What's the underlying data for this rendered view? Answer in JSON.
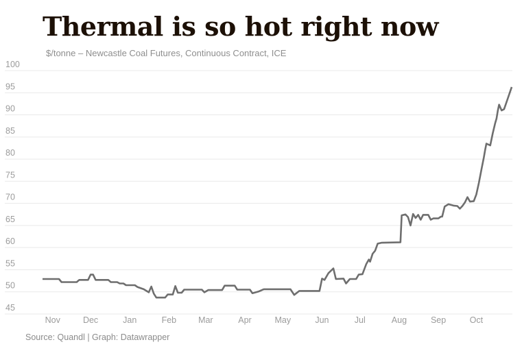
{
  "header": {
    "title": "Thermal is so hot right now",
    "subtitle": "$/tonne – Newcastle Coal Futures, Continuous Contract, ICE"
  },
  "footer": {
    "source": "Source: Quandl | Graph: Datawrapper"
  },
  "colors": {
    "background": "#ffffff",
    "title": "#1c1006",
    "subtitle": "#8e8e8e",
    "source": "#8b8b8b",
    "line": "#6e6e6e",
    "grid": "#e9e9e9",
    "axis_label": "#9b9b9b"
  },
  "chart_data": {
    "type": "line",
    "title": "Thermal is so hot right now",
    "subtitle": "$/tonne – Newcastle Coal Futures, Continuous Contract, ICE",
    "xlabel": "",
    "ylabel": "$/tonne",
    "ylim": [
      45,
      100
    ],
    "yticks": [
      45,
      50,
      55,
      60,
      65,
      70,
      75,
      80,
      85,
      90,
      95,
      100
    ],
    "grid": "horizontal",
    "legend": "none",
    "x_axis": {
      "type": "time",
      "domain_days": [
        0,
        371
      ],
      "month_ticks": [
        {
          "label": "Nov",
          "day": 8
        },
        {
          "label": "Dec",
          "day": 38
        },
        {
          "label": "Jan",
          "day": 69
        },
        {
          "label": "Feb",
          "day": 100
        },
        {
          "label": "Mar",
          "day": 129
        },
        {
          "label": "Apr",
          "day": 160
        },
        {
          "label": "May",
          "day": 190
        },
        {
          "label": "Jun",
          "day": 221
        },
        {
          "label": "Jul",
          "day": 251
        },
        {
          "label": "Aug",
          "day": 282
        },
        {
          "label": "Sep",
          "day": 313
        },
        {
          "label": "Oct",
          "day": 343
        }
      ]
    },
    "series": [
      {
        "name": "Newcastle Coal Futures, Continuous Contract, ICE ($/tonne)",
        "points_day_value": [
          [
            0,
            52.9
          ],
          [
            13,
            52.9
          ],
          [
            15,
            52.2
          ],
          [
            27,
            52.2
          ],
          [
            29,
            52.7
          ],
          [
            36,
            52.7
          ],
          [
            38,
            53.9
          ],
          [
            40,
            53.9
          ],
          [
            42,
            52.7
          ],
          [
            52,
            52.7
          ],
          [
            54,
            52.2
          ],
          [
            59,
            52.2
          ],
          [
            61,
            51.9
          ],
          [
            64,
            51.9
          ],
          [
            66,
            51.5
          ],
          [
            73,
            51.5
          ],
          [
            75,
            51.1
          ],
          [
            80,
            50.6
          ],
          [
            84,
            49.9
          ],
          [
            86,
            51.2
          ],
          [
            88,
            49.6
          ],
          [
            90,
            48.7
          ],
          [
            97,
            48.7
          ],
          [
            99,
            49.4
          ],
          [
            103,
            49.4
          ],
          [
            105,
            51.3
          ],
          [
            107,
            49.8
          ],
          [
            110,
            49.8
          ],
          [
            112,
            50.5
          ],
          [
            126,
            50.5
          ],
          [
            128,
            49.9
          ],
          [
            131,
            50.4
          ],
          [
            142,
            50.4
          ],
          [
            144,
            51.4
          ],
          [
            152,
            51.4
          ],
          [
            154,
            50.5
          ],
          [
            164,
            50.5
          ],
          [
            166,
            49.7
          ],
          [
            171,
            50.1
          ],
          [
            175,
            50.6
          ],
          [
            196,
            50.6
          ],
          [
            199,
            49.3
          ],
          [
            203,
            50.2
          ],
          [
            219,
            50.2
          ],
          [
            221,
            53.0
          ],
          [
            223,
            52.7
          ],
          [
            226,
            54.2
          ],
          [
            230,
            55.3
          ],
          [
            232,
            52.9
          ],
          [
            238,
            53.0
          ],
          [
            240,
            51.9
          ],
          [
            243,
            52.9
          ],
          [
            248,
            52.9
          ],
          [
            250,
            53.9
          ],
          [
            253,
            54.0
          ],
          [
            256,
            56.3
          ],
          [
            258,
            57.3
          ],
          [
            259,
            56.8
          ],
          [
            261,
            58.6
          ],
          [
            263,
            59.3
          ],
          [
            265,
            60.9
          ],
          [
            268,
            61.1
          ],
          [
            283,
            61.2
          ],
          [
            284,
            67.3
          ],
          [
            287,
            67.5
          ],
          [
            289,
            66.9
          ],
          [
            291,
            65.0
          ],
          [
            293,
            67.6
          ],
          [
            295,
            66.7
          ],
          [
            297,
            67.4
          ],
          [
            299,
            66.3
          ],
          [
            301,
            67.4
          ],
          [
            305,
            67.4
          ],
          [
            307,
            66.3
          ],
          [
            309,
            66.6
          ],
          [
            313,
            66.6
          ],
          [
            315,
            67.0
          ],
          [
            316,
            67.0
          ],
          [
            318,
            69.3
          ],
          [
            321,
            69.8
          ],
          [
            325,
            69.5
          ],
          [
            328,
            69.4
          ],
          [
            330,
            68.8
          ],
          [
            332,
            69.4
          ],
          [
            334,
            70.2
          ],
          [
            336,
            71.4
          ],
          [
            338,
            70.4
          ],
          [
            341,
            70.5
          ],
          [
            343,
            72.0
          ],
          [
            345,
            74.6
          ],
          [
            347,
            77.6
          ],
          [
            349,
            80.4
          ],
          [
            350,
            82.1
          ],
          [
            351,
            83.5
          ],
          [
            354,
            83.1
          ],
          [
            356,
            85.8
          ],
          [
            358,
            88.2
          ],
          [
            359,
            89.2
          ],
          [
            360,
            90.9
          ],
          [
            361,
            92.3
          ],
          [
            363,
            91.0
          ],
          [
            365,
            91.3
          ],
          [
            368,
            93.8
          ],
          [
            371,
            96.3
          ]
        ]
      }
    ]
  }
}
